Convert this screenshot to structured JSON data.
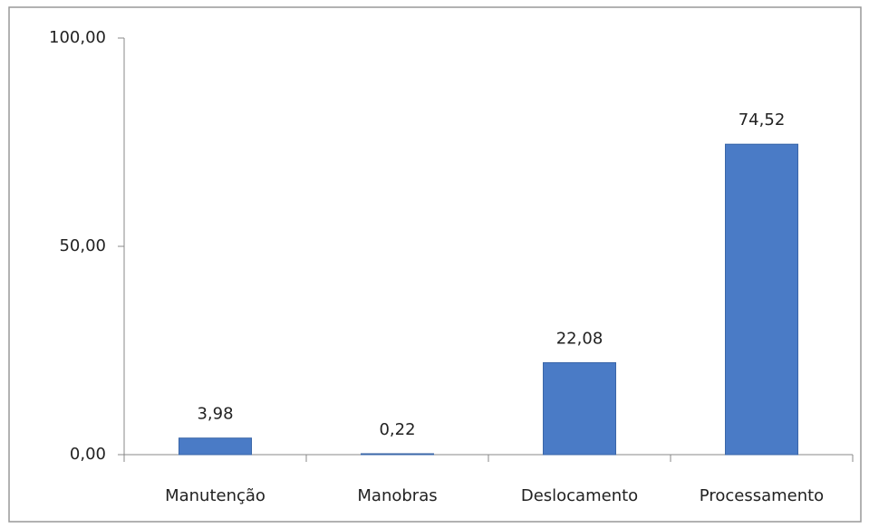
{
  "chart_data": {
    "type": "bar",
    "categories": [
      "Manutenção",
      "Manobras",
      "Deslocamento",
      "Processamento"
    ],
    "values": [
      3.98,
      0.22,
      22.08,
      74.52
    ],
    "value_labels": [
      "3,98",
      "0,22",
      "22,08",
      "74,52"
    ],
    "color": "#4a7bc6",
    "ylim": [
      0,
      100
    ],
    "yticks": [
      {
        "value": 0,
        "label": "0,00"
      },
      {
        "value": 50,
        "label": "50,00"
      },
      {
        "value": 100,
        "label": "100,00"
      }
    ],
    "grid": false
  }
}
